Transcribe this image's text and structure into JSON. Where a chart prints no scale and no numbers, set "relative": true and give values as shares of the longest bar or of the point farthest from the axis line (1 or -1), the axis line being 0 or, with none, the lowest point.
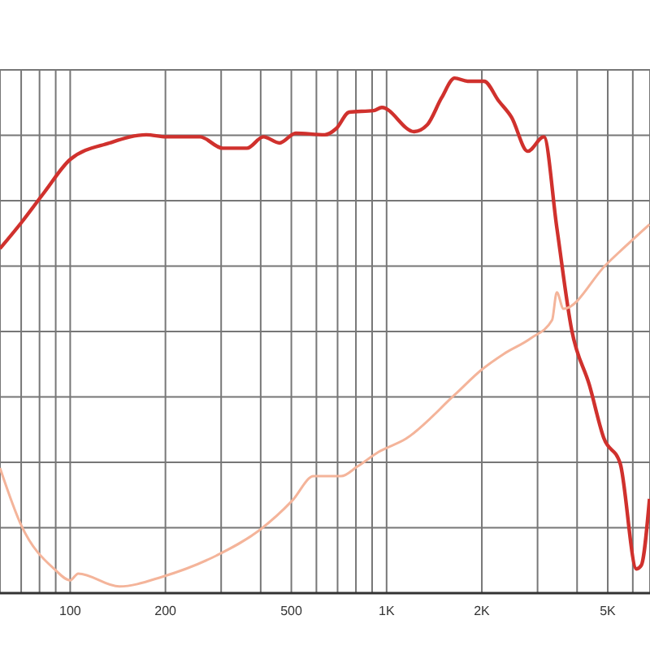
{
  "chart_data": {
    "type": "line",
    "relative": true,
    "log": "x",
    "grid": true,
    "marker": "none",
    "line_style": "solid",
    "legend": false,
    "tick_labels": "x",
    "xlim": [
      60,
      6800
    ],
    "xticks": [
      {
        "value": 70,
        "label": null
      },
      {
        "value": 80,
        "label": null
      },
      {
        "value": 90,
        "label": null
      },
      100,
      200,
      {
        "value": 300,
        "label": null
      },
      {
        "value": 400,
        "label": null
      },
      500,
      {
        "value": 600,
        "label": null
      },
      {
        "value": 700,
        "label": null
      },
      {
        "value": 800,
        "label": null
      },
      {
        "value": 900,
        "label": null
      },
      {
        "value": 1000,
        "label": "1K"
      },
      {
        "value": 2000,
        "label": "2K"
      },
      {
        "value": 3000,
        "label": null
      },
      {
        "value": 4000,
        "label": null
      },
      {
        "value": 5000,
        "label": "5K"
      },
      {
        "value": 6000,
        "label": null
      }
    ],
    "series": [
      {
        "color": "#d0312d",
        "x": [
          60,
          70,
          83,
          100,
          133,
          174,
          201,
          257,
          303,
          362,
          408,
          459,
          516,
          638,
          693,
          762,
          910,
          966,
          1222,
          1343,
          1493,
          1641,
          1803,
          2032,
          2259,
          2483,
          2793,
          3141,
          3451,
          3846,
          4375,
          4866,
          5472,
          6166,
          6383,
          6776
        ],
        "values": [
          0.669,
          0.719,
          0.779,
          0.842,
          0.874,
          0.89,
          0.886,
          0.886,
          0.864,
          0.864,
          0.886,
          0.874,
          0.893,
          0.89,
          0.902,
          0.934,
          0.937,
          0.943,
          0.896,
          0.909,
          0.962,
          1,
          0.994,
          0.994,
          0.956,
          0.924,
          0.858,
          0.886,
          0.71,
          0.511,
          0.404,
          0.3,
          0.252,
          0.047,
          0.054,
          0.183
        ]
      },
      {
        "color": "#f4b49a",
        "x": [
          60,
          70,
          89,
          100,
          106,
          143,
          196,
          290,
          398,
          504,
          588,
          718,
          809,
          943,
          1153,
          1641,
          2008,
          2339,
          2858,
          3334,
          3451,
          3623,
          4925,
          6776
        ],
        "values": [
          0.243,
          0.132,
          0.047,
          0.025,
          0.038,
          0.013,
          0.032,
          0.073,
          0.123,
          0.18,
          0.227,
          0.227,
          0.246,
          0.274,
          0.3,
          0.385,
          0.435,
          0.464,
          0.495,
          0.53,
          0.584,
          0.552,
          0.637,
          0.716
        ]
      }
    ]
  }
}
